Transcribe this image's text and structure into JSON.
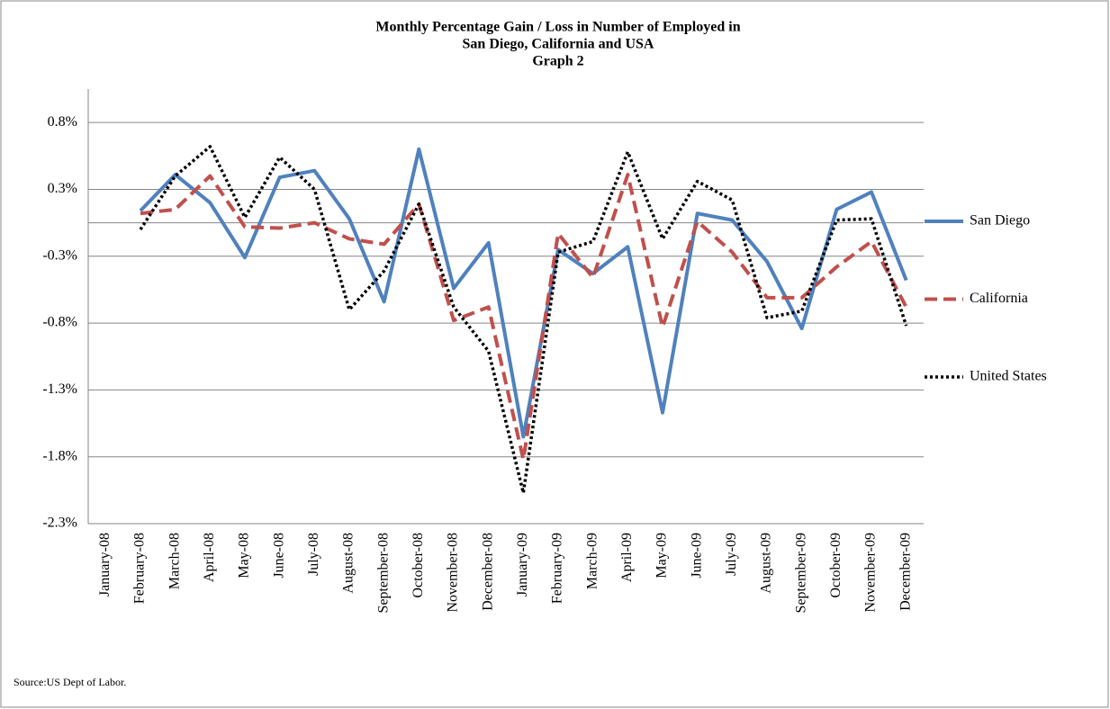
{
  "chart_data": {
    "type": "line",
    "title": [
      "Monthly Percentage Gain / Loss in Number of Employed in",
      "San Diego, California and USA",
      "Graph 2"
    ],
    "source": "Source:US Dept of Labor.",
    "categories": [
      "January-08",
      "February-08",
      "March-08",
      "April-08",
      "May-08",
      "June-08",
      "July-08",
      "August-08",
      "September-08",
      "October-08",
      "November-08",
      "December-08",
      "January-09",
      "February-09",
      "March-09",
      "April-09",
      "May-09",
      "June-09",
      "July-09",
      "August-09",
      "September-09",
      "October-09",
      "November-09",
      "December-09"
    ],
    "series": [
      {
        "name": "San Diego",
        "color": "#4f81bd",
        "dash": "solid",
        "values": [
          null,
          0.09,
          0.36,
          0.15,
          -0.26,
          0.34,
          0.39,
          0.03,
          -0.59,
          0.55,
          -0.49,
          -0.15,
          -1.6,
          -0.2,
          -0.38,
          -0.18,
          -1.42,
          0.07,
          0.02,
          -0.29,
          -0.79,
          0.1,
          0.23,
          -0.43
        ]
      },
      {
        "name": "California",
        "color": "#c0504d",
        "dash": "dashed",
        "values": [
          null,
          0.07,
          0.1,
          0.35,
          -0.03,
          -0.04,
          0.0,
          -0.12,
          -0.16,
          0.14,
          -0.73,
          -0.63,
          -1.77,
          -0.08,
          -0.41,
          0.36,
          -0.78,
          0.01,
          -0.22,
          -0.56,
          -0.56,
          -0.33,
          -0.14,
          -0.63
        ]
      },
      {
        "name": "United States",
        "color": "#000000",
        "dash": "dotted",
        "values": [
          null,
          -0.05,
          0.35,
          0.57,
          0.04,
          0.49,
          0.25,
          -0.65,
          -0.36,
          0.14,
          -0.63,
          -0.96,
          -2.02,
          -0.22,
          -0.14,
          0.53,
          -0.12,
          0.31,
          0.17,
          -0.71,
          -0.66,
          0.02,
          0.03,
          -0.77
        ]
      }
    ],
    "ylim": [
      -2.25,
      1.0
    ],
    "yticks": [
      {
        "value": 0.75,
        "label": "0.8%"
      },
      {
        "value": 0.25,
        "label": "0.3%"
      },
      {
        "value": -0.25,
        "label": "-0.3%"
      },
      {
        "value": -0.75,
        "label": "-0.8%"
      },
      {
        "value": -1.25,
        "label": "-1.3%"
      },
      {
        "value": -1.75,
        "label": "-1.8%"
      },
      {
        "value": -2.25,
        "label": "-2.3%"
      }
    ],
    "grid": true,
    "legend": "right"
  }
}
